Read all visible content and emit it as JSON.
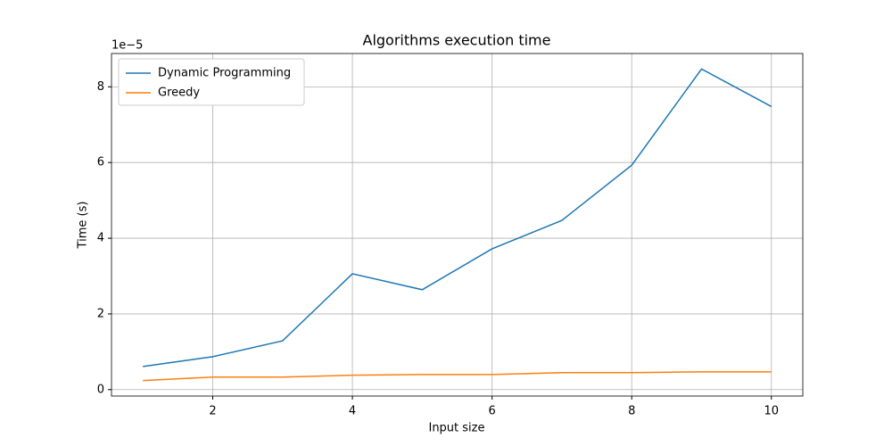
{
  "chart_data": {
    "type": "line",
    "title": "Algorithms execution time",
    "x_label": "Input size",
    "y_label": "Time (s)",
    "y_offset_label": "1e−5",
    "x": [
      1,
      2,
      3,
      4,
      5,
      6,
      7,
      8,
      9,
      10
    ],
    "series": [
      {
        "name": "Dynamic Programming",
        "color": "#1f77b4",
        "values": [
          0.61,
          0.87,
          1.29,
          3.06,
          2.64,
          3.72,
          4.47,
          5.93,
          8.47,
          7.48
        ]
      },
      {
        "name": "Greedy",
        "color": "#ff7f0e",
        "values": [
          0.24,
          0.33,
          0.33,
          0.38,
          0.4,
          0.4,
          0.45,
          0.45,
          0.47,
          0.47
        ]
      }
    ],
    "xlim": [
      0.55,
      10.45
    ],
    "xticks": [
      2,
      4,
      6,
      8,
      10
    ],
    "ylim": [
      -0.17,
      8.88
    ],
    "yticks": [
      0,
      2,
      4,
      6,
      8
    ],
    "grid": true,
    "legend": "upper-left"
  }
}
